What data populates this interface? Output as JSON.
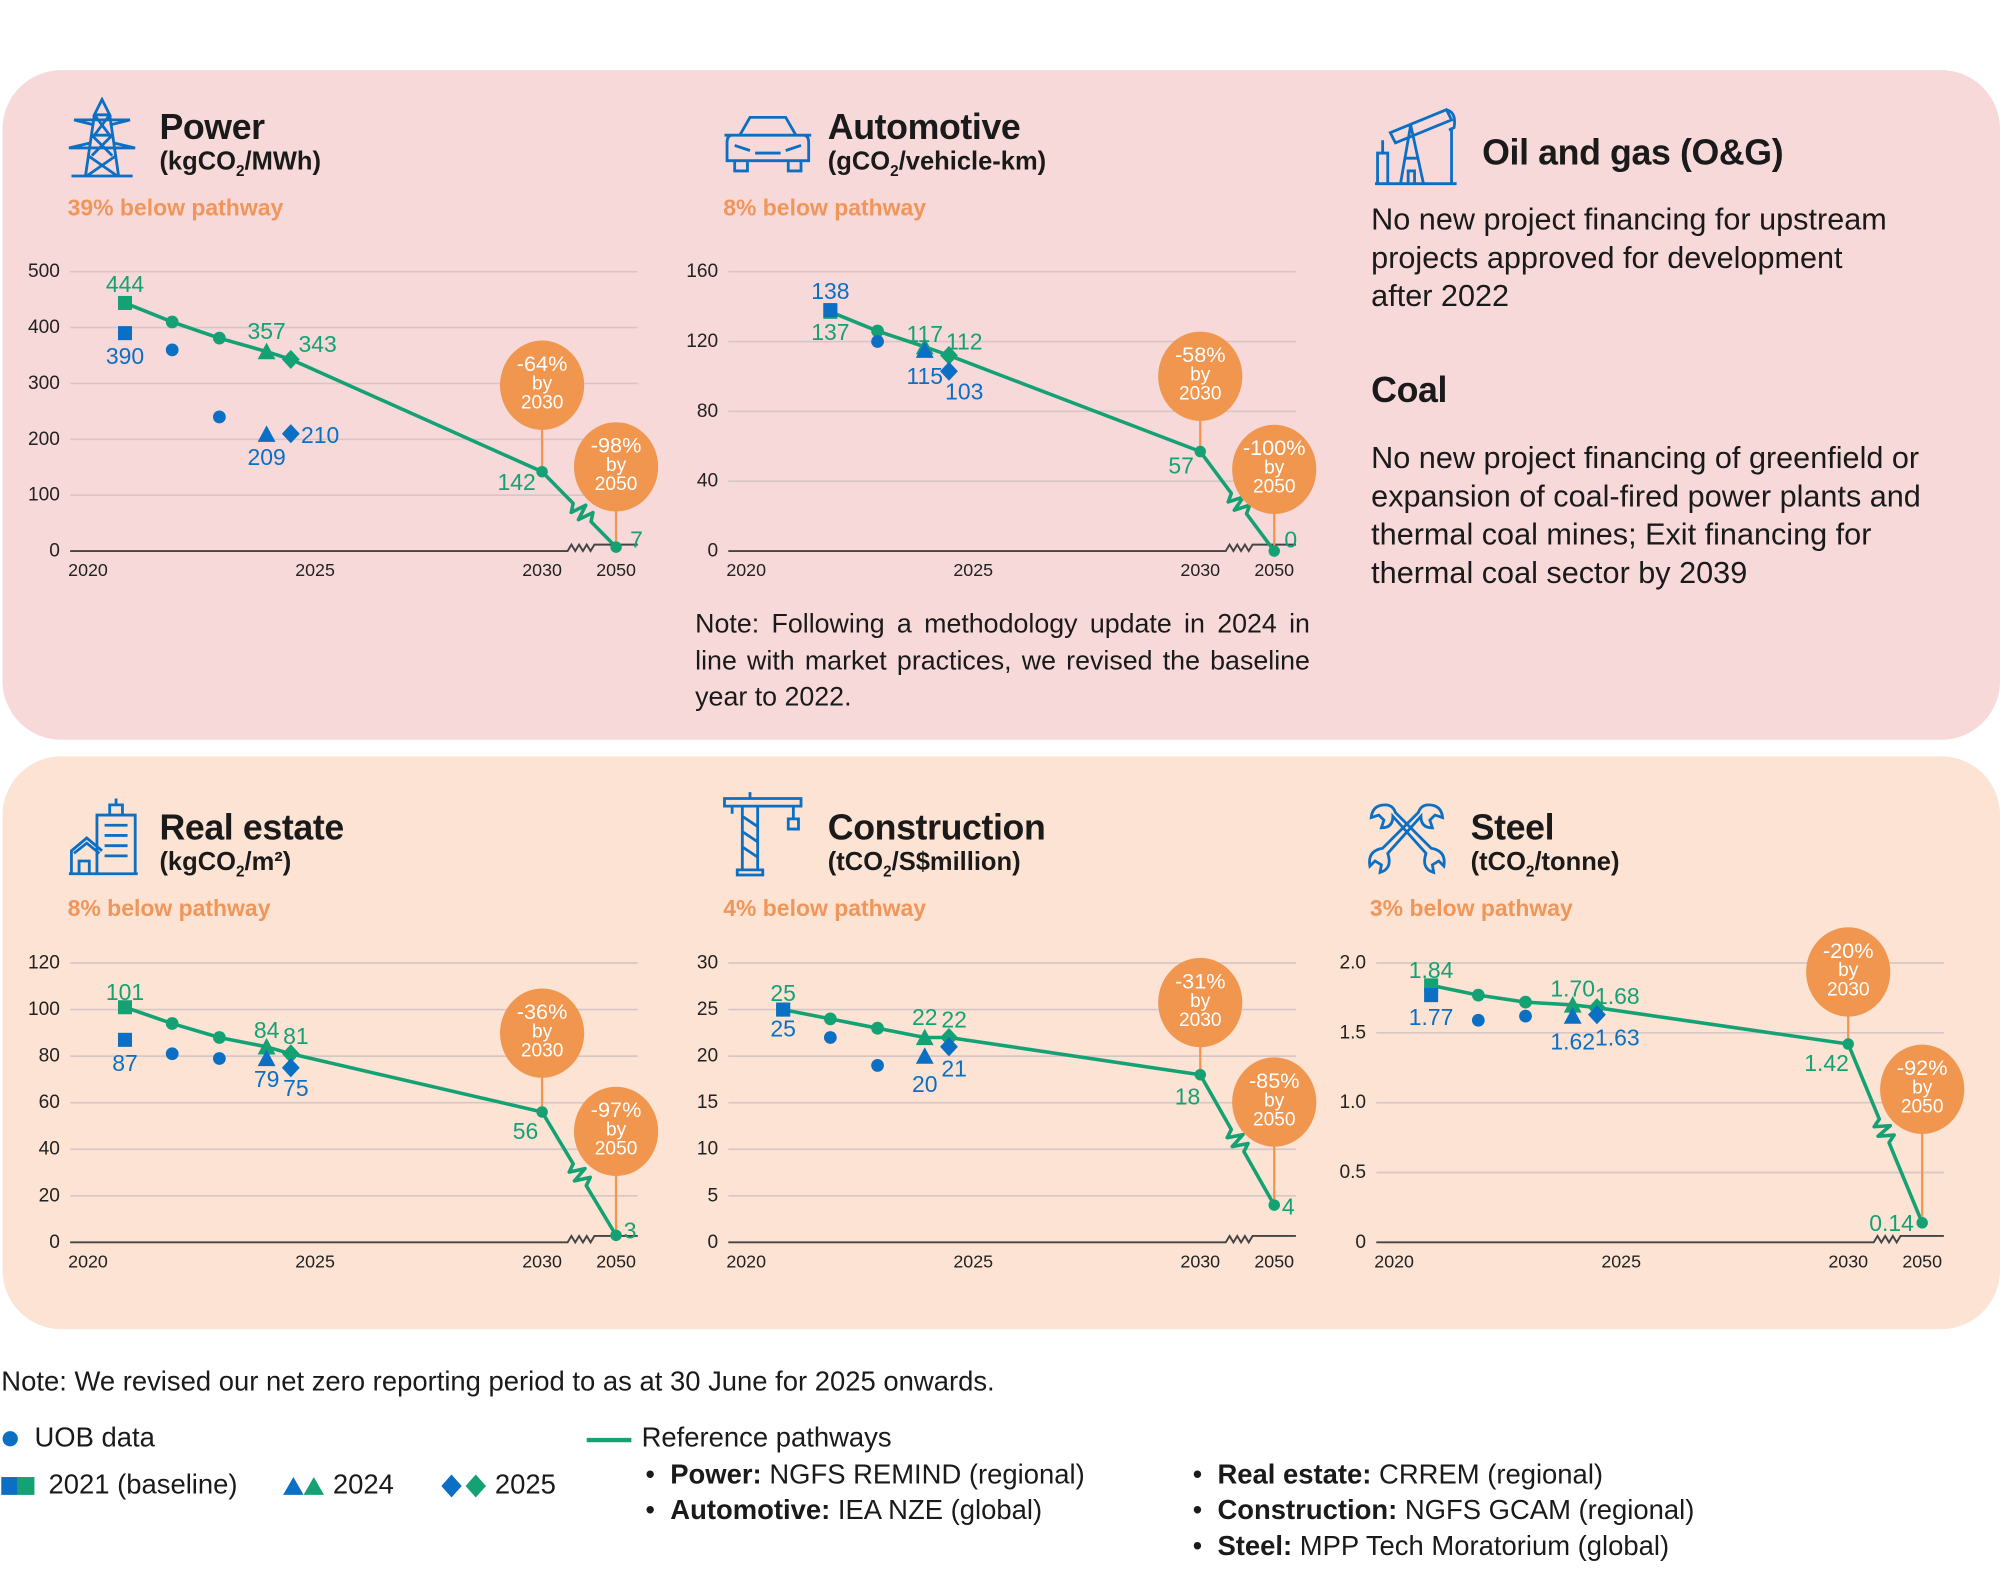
{
  "colors": {
    "uob": "#0b6fc4",
    "pathway": "#14a274",
    "badge": "#f0964f",
    "below_text": "#f0965a",
    "panel_top": "#f7d9da",
    "panel_bottom": "#fce3d3"
  },
  "sectors": {
    "power": {
      "title": "Power",
      "unit_pre": "(kgCO",
      "unit_sub": "2",
      "unit_post": "/MWh)",
      "below": "39% below pathway",
      "icon": "transmission-tower-icon"
    },
    "automotive": {
      "title": "Automotive",
      "unit_pre": "(gCO",
      "unit_sub": "2",
      "unit_post": "/vehicle-km)",
      "below": "8% below pathway",
      "icon": "car-icon"
    },
    "oilgas": {
      "title": "Oil and gas (O&G)",
      "text": "No new project financing for upstream projects approved for development after 2022",
      "icon": "oil-pump-icon"
    },
    "coal": {
      "title": "Coal",
      "text": "No new project financing of greenfield or expansion of coal-fired power plants and thermal coal mines; Exit financing for thermal coal sector by 2039"
    },
    "realestate": {
      "title": "Real estate",
      "unit_pre": "(kgCO",
      "unit_sub": "2",
      "unit_post": "/m²)",
      "below": "8% below pathway",
      "icon": "building-icon"
    },
    "construction": {
      "title": "Construction",
      "unit_pre": "(tCO",
      "unit_sub": "2",
      "unit_post": "/S$million)",
      "below": "4% below pathway",
      "icon": "crane-icon"
    },
    "steel": {
      "title": "Steel",
      "unit_pre": "(tCO",
      "unit_sub": "2",
      "unit_post": "/tonne)",
      "below": "3% below pathway",
      "icon": "wrenches-icon"
    }
  },
  "automotive_note": "Note: Following a methodology update in 2024 in line with market practices, we revised the baseline year to 2022.",
  "footer_note": "Note: We revised our net zero reporting period to as at 30 June for 2025 onwards.",
  "legend": {
    "uob": "UOB data",
    "baseline": "2021 (baseline)",
    "y2024": "2024",
    "y2025": "2025",
    "pathways": "Reference pathways",
    "refs": [
      {
        "sector": "Power:",
        "source": " NGFS REMIND (regional)"
      },
      {
        "sector": "Automotive:",
        "source": " IEA NZE (global)"
      },
      {
        "sector": "Real estate:",
        "source": " CRREM (regional)"
      },
      {
        "sector": "Construction:",
        "source": " NGFS GCAM (regional)"
      },
      {
        "sector": "Steel:",
        "source": " MPP Tech Moratorium (global)"
      }
    ]
  },
  "chart_data": [
    {
      "id": "power",
      "type": "line",
      "title": "Power",
      "ylim": [
        0,
        500
      ],
      "yticks": [
        "0",
        "100",
        "200",
        "300",
        "400",
        "500"
      ],
      "ytick_values": [
        0,
        100,
        200,
        300,
        400,
        500
      ],
      "xticks": [
        "2020",
        "2025",
        "2030",
        "2050"
      ],
      "years": [
        "2021",
        "2022",
        "2023",
        "2024",
        "2025"
      ],
      "markers": [
        "square",
        "circle",
        "circle",
        "triangle",
        "diamond"
      ],
      "uob": [
        390,
        360,
        240,
        209,
        210
      ],
      "uob_labels": [
        "390",
        null,
        null,
        "209",
        "210"
      ],
      "pathway": [
        444,
        410,
        381,
        357,
        343
      ],
      "pathway_labels": [
        "444",
        null,
        null,
        "357",
        "343"
      ],
      "pathway_2030": 142,
      "pathway_2030_label": "142",
      "pathway_2050": 7,
      "pathway_2050_label": "7",
      "badge_2030": [
        "-64%",
        "by",
        "2030"
      ],
      "badge_2050": [
        "-98%",
        "by",
        "2050"
      ]
    },
    {
      "id": "automotive",
      "type": "line",
      "title": "Automotive",
      "ylim": [
        0,
        160
      ],
      "yticks": [
        "0",
        "40",
        "80",
        "120",
        "160"
      ],
      "ytick_values": [
        0,
        40,
        80,
        120,
        160
      ],
      "xticks": [
        "2020",
        "2025",
        "2030",
        "2050"
      ],
      "years": [
        "2022",
        "2023",
        "2024",
        "2025"
      ],
      "markers": [
        "square",
        "circle",
        "triangle",
        "diamond"
      ],
      "uob": [
        138,
        120,
        115,
        103
      ],
      "uob_labels": [
        "138",
        null,
        "115",
        "103"
      ],
      "pathway": [
        137,
        126,
        117,
        112
      ],
      "pathway_labels": [
        "137",
        null,
        "117",
        "112"
      ],
      "pathway_2030": 57,
      "pathway_2030_label": "57",
      "pathway_2050": 0,
      "pathway_2050_label": "0",
      "badge_2030": [
        "-58%",
        "by",
        "2030"
      ],
      "badge_2050": [
        "-100%",
        "by",
        "2050"
      ]
    },
    {
      "id": "realestate",
      "type": "line",
      "title": "Real estate",
      "ylim": [
        0,
        120
      ],
      "yticks": [
        "0",
        "20",
        "40",
        "60",
        "80",
        "100",
        "120"
      ],
      "ytick_values": [
        0,
        20,
        40,
        60,
        80,
        100,
        120
      ],
      "xticks": [
        "2020",
        "2025",
        "2030",
        "2050"
      ],
      "years": [
        "2021",
        "2022",
        "2023",
        "2024",
        "2025"
      ],
      "markers": [
        "square",
        "circle",
        "circle",
        "triangle",
        "diamond"
      ],
      "uob": [
        87,
        81,
        79,
        79,
        75
      ],
      "uob_labels": [
        "87",
        null,
        null,
        "79",
        "75"
      ],
      "pathway": [
        101,
        94,
        88,
        84,
        81
      ],
      "pathway_labels": [
        "101",
        null,
        null,
        "84",
        "81"
      ],
      "pathway_2030": 56,
      "pathway_2030_label": "56",
      "pathway_2050": 3,
      "pathway_2050_label": "3",
      "badge_2030": [
        "-36%",
        "by",
        "2030"
      ],
      "badge_2050": [
        "-97%",
        "by",
        "2050"
      ]
    },
    {
      "id": "construction",
      "type": "line",
      "title": "Construction",
      "ylim": [
        0,
        30
      ],
      "yticks": [
        "0",
        "5",
        "10",
        "15",
        "20",
        "25",
        "30"
      ],
      "ytick_values": [
        0,
        5,
        10,
        15,
        20,
        25,
        30
      ],
      "xticks": [
        "2020",
        "2025",
        "2030",
        "2050"
      ],
      "years": [
        "2021",
        "2022",
        "2023",
        "2024",
        "2025"
      ],
      "markers": [
        "square",
        "circle",
        "circle",
        "triangle",
        "diamond"
      ],
      "uob": [
        25,
        22,
        19,
        20,
        21
      ],
      "uob_labels": [
        "25",
        null,
        null,
        "20",
        "21"
      ],
      "pathway": [
        25,
        24,
        23,
        22,
        22
      ],
      "pathway_labels": [
        "25",
        null,
        null,
        "22",
        "22"
      ],
      "pathway_2030": 18,
      "pathway_2030_label": "18",
      "pathway_2050": 4,
      "pathway_2050_label": "4",
      "badge_2030": [
        "-31%",
        "by",
        "2030"
      ],
      "badge_2050": [
        "-85%",
        "by",
        "2050"
      ]
    },
    {
      "id": "steel",
      "type": "line",
      "title": "Steel",
      "ylim": [
        0,
        2.0
      ],
      "yticks": [
        "0",
        "0.5",
        "1.0",
        "1.5",
        "2.0"
      ],
      "ytick_values": [
        0,
        0.5,
        1.0,
        1.5,
        2.0
      ],
      "xticks": [
        "2020",
        "2025",
        "2030",
        "2050"
      ],
      "years": [
        "2021",
        "2022",
        "2023",
        "2024",
        "2025"
      ],
      "markers": [
        "square",
        "circle",
        "circle",
        "triangle",
        "diamond"
      ],
      "uob": [
        1.77,
        1.59,
        1.62,
        1.62,
        1.63
      ],
      "uob_labels": [
        "1.77",
        null,
        null,
        "1.62",
        "1.63"
      ],
      "pathway": [
        1.84,
        1.77,
        1.72,
        1.7,
        1.68
      ],
      "pathway_labels": [
        "1.84",
        null,
        null,
        "1.70",
        "1.68"
      ],
      "pathway_2030": 1.42,
      "pathway_2030_label": "1.42",
      "pathway_2050": 0.14,
      "pathway_2050_label": "0.14",
      "badge_2030": [
        "-20%",
        "by",
        "2030"
      ],
      "badge_2050": [
        "-92%",
        "by",
        "2050"
      ]
    }
  ]
}
